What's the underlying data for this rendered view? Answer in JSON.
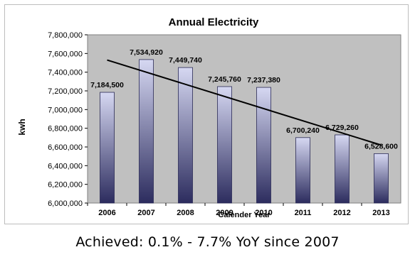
{
  "chart_data": {
    "type": "bar",
    "title": "Annual Electricity",
    "xlabel": "Calender Year",
    "ylabel": "kwh",
    "categories": [
      "2006",
      "2007",
      "2008",
      "2009",
      "2010",
      "2011",
      "2012",
      "2013"
    ],
    "values": [
      7184500,
      7534920,
      7449740,
      7245760,
      7237380,
      6700240,
      6729260,
      6528600
    ],
    "data_labels": [
      "7,184,500",
      "7,534,920",
      "7,449,740",
      "7,245,760",
      "7,237,380",
      "6,700,240",
      "6,729,260",
      "6,528,600"
    ],
    "ylim": [
      6000000,
      7800000
    ],
    "yticks": [
      6000000,
      6200000,
      6400000,
      6600000,
      6800000,
      7000000,
      7200000,
      7400000,
      7600000,
      7800000
    ],
    "ytick_labels": [
      "6,000,000",
      "6,200,000",
      "6,400,000",
      "6,600,000",
      "6,800,000",
      "7,000,000",
      "7,200,000",
      "7,400,000",
      "7,600,000",
      "7,800,000"
    ],
    "trendline": {
      "type": "linear",
      "start_value": 7530000,
      "end_value": 6620000,
      "color": "#000000"
    },
    "grid": false,
    "legend": "none",
    "colors": {
      "plot_background": "#c0c0c0",
      "bar_top": "#d6d8f2",
      "bar_bottom": "#2c2c5e",
      "bar_edge": "#2a2a55"
    }
  },
  "caption": "Achieved:  0.1% - 7.7% YoY since 2007"
}
